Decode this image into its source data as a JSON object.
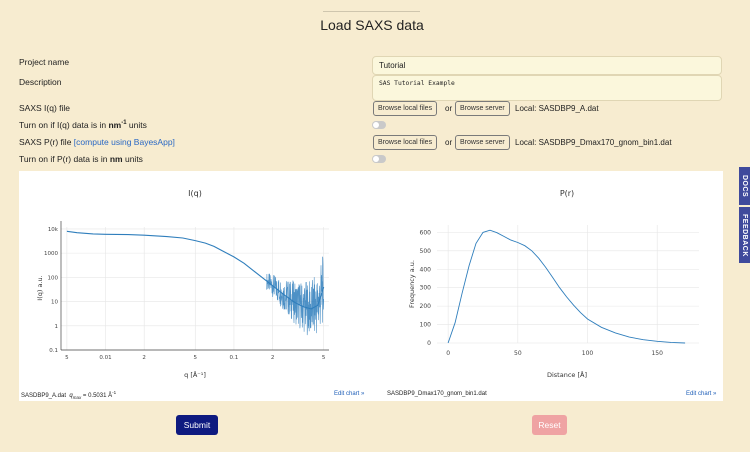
{
  "page": {
    "title": "Load SAXS data"
  },
  "form": {
    "project_name_label": "Project name",
    "project_name_value": "Tutorial",
    "description_label": "Description",
    "description_value": "SAS Tutorial Example",
    "saxs_iq_label": "SAXS I(q) file",
    "browse_local_label": "Browse local files",
    "or_text": "or",
    "browse_server_label": "Browse server",
    "iq_file": "Local: SASDBP9_A.dat",
    "iq_units_prefix": "Turn on if I(q) data is in ",
    "iq_units_unit": "nm",
    "iq_units_exp": "-1",
    "iq_units_suffix": " units",
    "saxs_pr_label": "SAXS P(r) file ",
    "pr_compute_link": "[compute using BayesApp]",
    "pr_file": "Local: SASDBP9_Dmax170_gnom_bin1.dat",
    "pr_units_prefix": "Turn on if P(r) data is in ",
    "pr_units_unit": "nm",
    "pr_units_suffix": " units",
    "iq_toggle_on": false,
    "pr_toggle_on": false
  },
  "iq_footer": {
    "file": "SASDBP9_A.dat",
    "qmax_label": "q",
    "qmax_sub": "max",
    "qmax_value": " = 0.5031 Å",
    "qmax_exp": "-1",
    "edit_chart": "Edit chart »"
  },
  "pr_footer": {
    "file": "SASDBP9_Dmax170_gnom_bin1.dat",
    "edit_chart": "Edit chart »"
  },
  "buttons": {
    "submit": "Submit",
    "reset": "Reset"
  },
  "side_tabs": {
    "docs": "DOCS",
    "feedback": "FEEDBACK"
  },
  "colors": {
    "line": "#2f7ebc",
    "submit": "#0e1a80",
    "reset": "#efa3a3",
    "side": "#3f4a9c"
  },
  "chart_data": [
    {
      "type": "line",
      "title": "I(q)",
      "xlabel": "q [Å⁻¹]",
      "ylabel": "I(q) a.u.",
      "xscale": "log",
      "yscale": "log",
      "xlim": [
        0.0045,
        0.55
      ],
      "ylim": [
        0.1,
        12000
      ],
      "x_tick_labels": [
        {
          "v": 0.005,
          "t": "5"
        },
        {
          "v": 0.01,
          "t": "0.01"
        },
        {
          "v": 0.02,
          "t": "2"
        },
        {
          "v": 0.05,
          "t": "5"
        },
        {
          "v": 0.1,
          "t": "0.1"
        },
        {
          "v": 0.2,
          "t": "2"
        },
        {
          "v": 0.5,
          "t": "5"
        }
      ],
      "y_tick_labels": [
        {
          "v": 0.1,
          "t": "0.1"
        },
        {
          "v": 1,
          "t": "1"
        },
        {
          "v": 10,
          "t": "10"
        },
        {
          "v": 100,
          "t": "100"
        },
        {
          "v": 1000,
          "t": "1000"
        },
        {
          "v": 10000,
          "t": "10k"
        }
      ],
      "series": [
        {
          "name": "SASDBP9_A.dat",
          "x": [
            0.005,
            0.006,
            0.008,
            0.01,
            0.015,
            0.02,
            0.03,
            0.04,
            0.05,
            0.06,
            0.07,
            0.08,
            0.1,
            0.12,
            0.15,
            0.2,
            0.25,
            0.3,
            0.35,
            0.4,
            0.45,
            0.5
          ],
          "y": [
            8000,
            7000,
            6200,
            6000,
            5800,
            5500,
            4800,
            4200,
            3300,
            2600,
            1900,
            1300,
            700,
            380,
            150,
            45,
            18,
            9,
            6,
            5,
            7,
            40
          ]
        }
      ]
    },
    {
      "type": "line",
      "title": "P(r)",
      "xlabel": "Distance [Å]",
      "ylabel": "Frequency a.u.",
      "xlim": [
        -8,
        180
      ],
      "ylim": [
        0,
        640
      ],
      "x_ticks": [
        0,
        50,
        100,
        150
      ],
      "y_ticks": [
        0,
        100,
        200,
        300,
        400,
        500,
        600
      ],
      "series": [
        {
          "name": "SASDBP9_Dmax170_gnom_bin1.dat",
          "x": [
            0,
            5,
            10,
            15,
            20,
            25,
            30,
            35,
            40,
            45,
            50,
            55,
            60,
            65,
            70,
            75,
            80,
            85,
            90,
            95,
            100,
            110,
            120,
            130,
            140,
            150,
            160,
            170
          ],
          "y": [
            0,
            110,
            270,
            420,
            540,
            600,
            612,
            598,
            578,
            558,
            545,
            528,
            500,
            460,
            410,
            355,
            300,
            250,
            205,
            165,
            130,
            85,
            55,
            32,
            18,
            9,
            3,
            0
          ]
        }
      ]
    }
  ]
}
